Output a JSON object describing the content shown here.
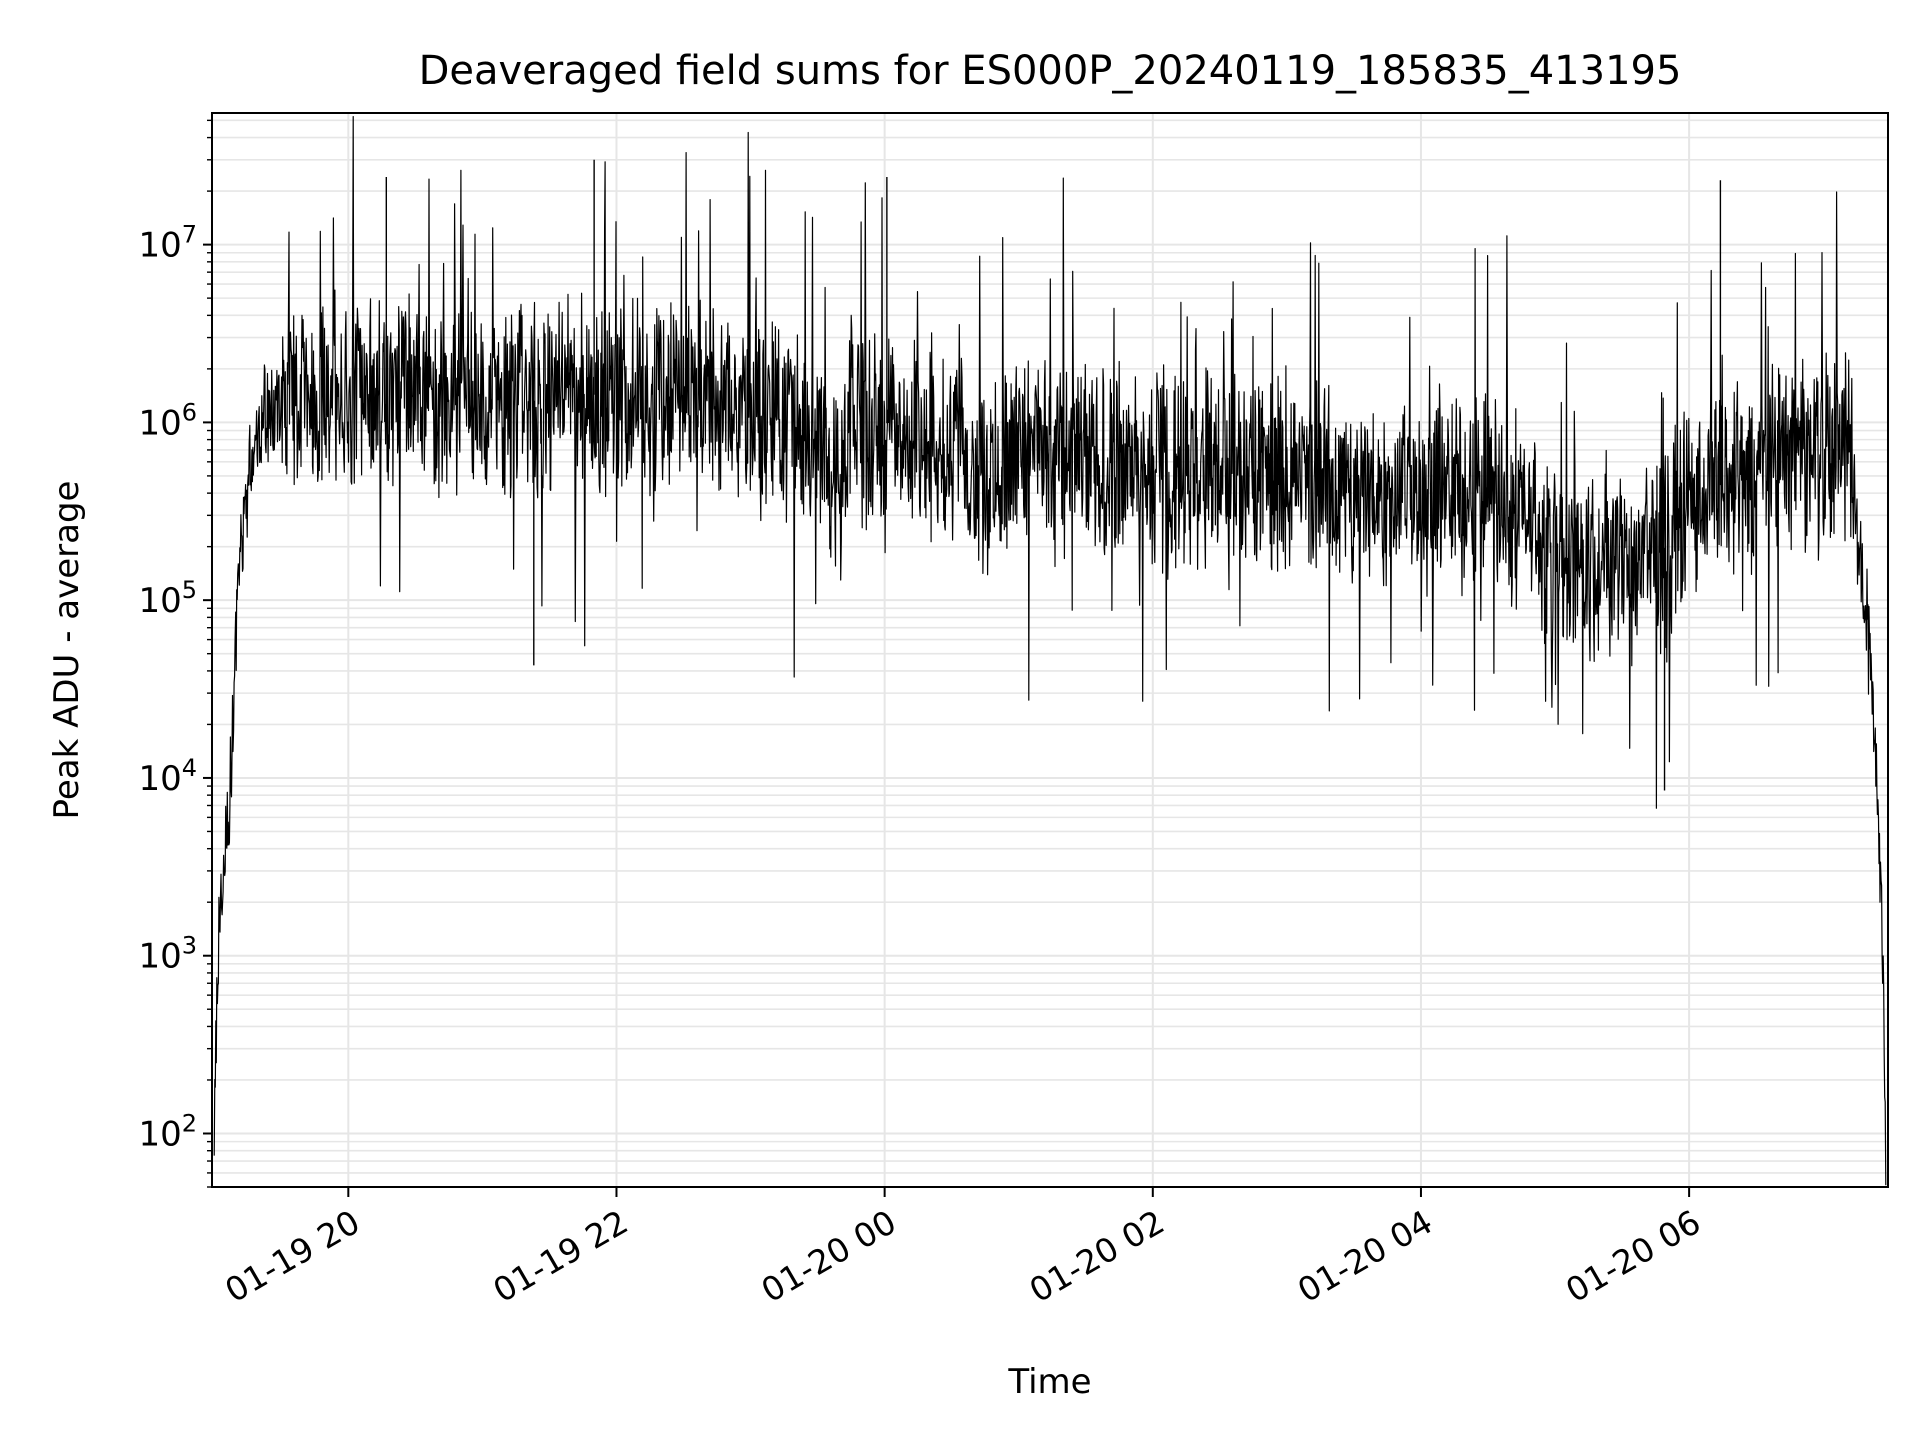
{
  "chart_data": {
    "type": "line",
    "title": "Deaveraged field sums for ES000P_20240119_185835_413195",
    "xlabel": "Time",
    "ylabel": "Peak ADU - average",
    "yscale": "log",
    "ylim": [
      50,
      55000000
    ],
    "xlim": [
      "2024-01-19T18:59",
      "2024-01-20T07:29"
    ],
    "grid": "on (major and minor)",
    "line_color": "#000000",
    "grid_color": "#e6e6e6",
    "y_ticks": [
      {
        "value": 100,
        "base": "10",
        "exp": "2"
      },
      {
        "value": 1000,
        "base": "10",
        "exp": "3"
      },
      {
        "value": 10000,
        "base": "10",
        "exp": "4"
      },
      {
        "value": 100000,
        "base": "10",
        "exp": "5"
      },
      {
        "value": 1000000,
        "base": "10",
        "exp": "6"
      },
      {
        "value": 10000000,
        "base": "10",
        "exp": "7"
      }
    ],
    "x_ticks": [
      {
        "time": "2024-01-19T20:00",
        "label": "01-19 20"
      },
      {
        "time": "2024-01-19T22:00",
        "label": "01-19 22"
      },
      {
        "time": "2024-01-20T00:00",
        "label": "01-20 00"
      },
      {
        "time": "2024-01-20T02:00",
        "label": "01-20 02"
      },
      {
        "time": "2024-01-20T04:00",
        "label": "01-20 04"
      },
      {
        "time": "2024-01-20T06:00",
        "label": "01-20 06"
      }
    ],
    "series": [
      {
        "time": [
          "2024-01-19T19:00",
          "2024-01-19T19:02",
          "2024-01-19T19:04",
          "2024-01-19T19:06",
          "2024-01-19T19:08",
          "2024-01-19T19:10",
          "2024-01-19T19:12",
          "2024-01-19T19:15",
          "2024-01-19T19:18",
          "2024-01-19T19:22",
          "2024-01-19T19:26",
          "2024-01-19T19:30",
          "2024-01-19T19:40",
          "2024-01-19T20:00",
          "2024-01-19T20:30",
          "2024-01-19T21:00",
          "2024-01-19T21:30",
          "2024-01-19T22:00",
          "2024-01-19T22:30",
          "2024-01-19T23:00",
          "2024-01-19T23:30",
          "2024-01-19T23:35",
          "2024-01-19T23:40",
          "2024-01-19T23:45",
          "2024-01-20T00:00",
          "2024-01-20T00:30",
          "2024-01-20T00:50",
          "2024-01-20T01:00",
          "2024-01-20T01:30",
          "2024-01-20T02:00",
          "2024-01-20T02:30",
          "2024-01-20T03:00",
          "2024-01-20T03:30",
          "2024-01-20T04:00",
          "2024-01-20T04:30",
          "2024-01-20T04:50",
          "2024-01-20T05:00",
          "2024-01-20T05:30",
          "2024-01-20T05:50",
          "2024-01-20T06:00",
          "2024-01-20T06:30",
          "2024-01-20T07:00",
          "2024-01-20T07:12",
          "2024-01-20T07:16",
          "2024-01-20T07:20",
          "2024-01-20T07:24",
          "2024-01-20T07:27",
          "2024-01-20T07:28"
        ],
        "base": [
          100,
          1500,
          2500,
          4000,
          20000,
          60000,
          200000,
          500000,
          800000,
          1000000,
          1200000,
          1300000,
          1500000,
          1600000,
          1500000,
          1400000,
          1300000,
          1500000,
          1400000,
          1200000,
          1000000,
          600000,
          300000,
          1000000,
          1000000,
          700000,
          500000,
          800000,
          600000,
          500000,
          600000,
          500000,
          400000,
          400000,
          400000,
          300000,
          150000,
          150000,
          200000,
          400000,
          500000,
          700000,
          800000,
          200000,
          70000,
          10000,
          1000,
          60
        ]
      }
    ],
    "points_note_spikes": [
      {
        "time": "2024-01-19T21:50",
        "value": 30000000
      },
      {
        "time": "2024-01-19T20:17",
        "value": 24000000
      },
      {
        "time": "2024-01-20T00:01",
        "value": 24000000
      },
      {
        "time": "2024-01-20T06:14",
        "value": 23000000
      },
      {
        "time": "2024-01-19T21:23",
        "value": 43000
      },
      {
        "time": "2024-01-20T05:49",
        "value": 8500
      }
    ]
  }
}
